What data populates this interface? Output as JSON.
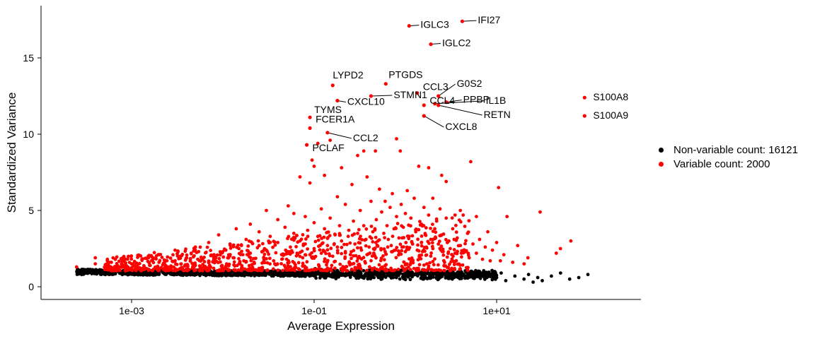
{
  "colors": {
    "variable": "#ff0000",
    "non_variable": "#000000"
  },
  "chart_data": {
    "type": "scatter",
    "title": "",
    "xlabel": "Average Expression",
    "ylabel": "Standardized Variance",
    "x_scale": "log10",
    "xlim": [
      1e-05,
      1000
    ],
    "ylim": [
      -1,
      18.5
    ],
    "x_ticks": [
      {
        "value": 0.001,
        "label": "1e-03"
      },
      {
        "value": 0.1,
        "label": "1e-01"
      },
      {
        "value": 10,
        "label": "1e+01"
      }
    ],
    "y_ticks": [
      {
        "value": 0,
        "label": "0"
      },
      {
        "value": 5,
        "label": "5"
      },
      {
        "value": 10,
        "label": "10"
      },
      {
        "value": 15,
        "label": "15"
      }
    ],
    "grid": false,
    "legend_position": "right",
    "legend": [
      {
        "label": "Non-variable count: 16121",
        "color": "#000000"
      },
      {
        "label": "Variable count: 2000",
        "color": "#ff0000"
      }
    ],
    "labeled_genes": [
      {
        "gene": "IFI27",
        "x": 4.2,
        "y": 17.4
      },
      {
        "gene": "IGLC3",
        "x": 1.1,
        "y": 17.1
      },
      {
        "gene": "IGLC2",
        "x": 1.9,
        "y": 15.9
      },
      {
        "gene": "LYPD2",
        "x": 0.16,
        "y": 13.2
      },
      {
        "gene": "PTGDS",
        "x": 0.61,
        "y": 13.3
      },
      {
        "gene": "CCL3",
        "x": 1.35,
        "y": 12.7
      },
      {
        "gene": "G0S2",
        "x": 2.3,
        "y": 12.5
      },
      {
        "gene": "STMN1",
        "x": 0.42,
        "y": 12.5
      },
      {
        "gene": "PPBP",
        "x": 2.8,
        "y": 12.1
      },
      {
        "gene": "IL1B",
        "x": 2.1,
        "y": 12.0
      },
      {
        "gene": "CXCL10",
        "x": 0.18,
        "y": 12.2
      },
      {
        "gene": "RETN",
        "x": 2.3,
        "y": 11.9
      },
      {
        "gene": "CCL4",
        "x": 1.6,
        "y": 11.9
      },
      {
        "gene": "CXCL8",
        "x": 1.6,
        "y": 11.2
      },
      {
        "gene": "TYMS",
        "x": 0.09,
        "y": 11.1
      },
      {
        "gene": "FCER1A",
        "x": 0.09,
        "y": 10.4
      },
      {
        "gene": "CCL2",
        "x": 0.14,
        "y": 10.1
      },
      {
        "gene": "PCLAF",
        "x": 0.083,
        "y": 9.3
      },
      {
        "gene": "S100A8",
        "x": 92,
        "y": 12.4
      },
      {
        "gene": "S100A9",
        "x": 92,
        "y": 11.2
      }
    ],
    "variable_points": [
      [
        0.00025,
        1.3
      ],
      [
        0.0004,
        1.9
      ],
      [
        0.0004,
        1.5
      ],
      [
        0.0006,
        1.1
      ],
      [
        0.0006,
        1.6
      ],
      [
        0.0008,
        1.3
      ],
      [
        0.0008,
        1.9
      ],
      [
        0.001,
        1.5
      ],
      [
        0.0013,
        1.2
      ],
      [
        0.0013,
        1.8
      ],
      [
        0.0016,
        1.4
      ],
      [
        0.002,
        1.6
      ],
      [
        0.002,
        2.1
      ],
      [
        0.0025,
        1.3
      ],
      [
        0.003,
        2.4
      ],
      [
        0.003,
        1.7
      ],
      [
        0.0035,
        1.5
      ],
      [
        0.004,
        1.9
      ],
      [
        0.0045,
        2.2
      ],
      [
        0.005,
        1.4
      ],
      [
        0.005,
        2.6
      ],
      [
        0.006,
        1.8
      ],
      [
        0.007,
        2.9
      ],
      [
        0.007,
        1.6
      ],
      [
        0.008,
        2.1
      ],
      [
        0.009,
        3.4
      ],
      [
        0.01,
        2.3
      ],
      [
        0.011,
        1.5
      ],
      [
        0.012,
        2.8
      ],
      [
        0.013,
        1.9
      ],
      [
        0.014,
        3.8
      ],
      [
        0.015,
        2.5
      ],
      [
        0.017,
        1.7
      ],
      [
        0.018,
        3.1
      ],
      [
        0.02,
        4.1
      ],
      [
        0.02,
        2.2
      ],
      [
        0.022,
        1.6
      ],
      [
        0.025,
        3.6
      ],
      [
        0.025,
        2.7
      ],
      [
        0.028,
        1.9
      ],
      [
        0.03,
        5.0
      ],
      [
        0.03,
        2.4
      ],
      [
        0.033,
        3.3
      ],
      [
        0.036,
        1.7
      ],
      [
        0.04,
        4.4
      ],
      [
        0.04,
        2.9
      ],
      [
        0.044,
        2.1
      ],
      [
        0.048,
        3.9
      ],
      [
        0.05,
        1.8
      ],
      [
        0.052,
        5.3
      ],
      [
        0.055,
        2.6
      ],
      [
        0.06,
        3.5
      ],
      [
        0.06,
        4.8
      ],
      [
        0.065,
        2.2
      ],
      [
        0.07,
        7.2
      ],
      [
        0.07,
        3.0
      ],
      [
        0.075,
        1.9
      ],
      [
        0.08,
        4.6
      ],
      [
        0.08,
        2.8
      ],
      [
        0.085,
        3.7
      ],
      [
        0.09,
        2.1
      ],
      [
        0.09,
        6.8
      ],
      [
        0.095,
        8.3
      ],
      [
        0.1,
        7.9
      ],
      [
        0.1,
        4.2
      ],
      [
        0.1,
        2.5
      ],
      [
        0.11,
        3.3
      ],
      [
        0.11,
        9.4
      ],
      [
        0.12,
        5.1
      ],
      [
        0.12,
        2.2
      ],
      [
        0.13,
        7.3
      ],
      [
        0.13,
        3.8
      ],
      [
        0.14,
        2.7
      ],
      [
        0.15,
        4.5
      ],
      [
        0.15,
        9.6
      ],
      [
        0.16,
        2.0
      ],
      [
        0.17,
        3.4
      ],
      [
        0.18,
        5.9
      ],
      [
        0.18,
        2.6
      ],
      [
        0.19,
        4.0
      ],
      [
        0.2,
        3.0
      ],
      [
        0.2,
        7.8
      ],
      [
        0.22,
        2.3
      ],
      [
        0.22,
        5.4
      ],
      [
        0.24,
        3.7
      ],
      [
        0.25,
        2.1
      ],
      [
        0.26,
        6.7
      ],
      [
        0.27,
        4.3
      ],
      [
        0.28,
        2.8
      ],
      [
        0.3,
        8.6
      ],
      [
        0.3,
        3.5
      ],
      [
        0.32,
        5.0
      ],
      [
        0.33,
        2.4
      ],
      [
        0.35,
        4.0
      ],
      [
        0.35,
        8.9
      ],
      [
        0.37,
        3.1
      ],
      [
        0.38,
        7.2
      ],
      [
        0.4,
        2.6
      ],
      [
        0.42,
        5.6
      ],
      [
        0.44,
        3.6
      ],
      [
        0.45,
        2.2
      ],
      [
        0.47,
        8.9
      ],
      [
        0.48,
        4.4
      ],
      [
        0.5,
        3.0
      ],
      [
        0.52,
        6.4
      ],
      [
        0.54,
        2.5
      ],
      [
        0.55,
        4.9
      ],
      [
        0.58,
        3.5
      ],
      [
        0.6,
        5.6
      ],
      [
        0.6,
        2.3
      ],
      [
        0.63,
        4.0
      ],
      [
        0.65,
        3.1
      ],
      [
        0.68,
        5.2
      ],
      [
        0.7,
        2.7
      ],
      [
        0.72,
        6.1
      ],
      [
        0.75,
        3.8
      ],
      [
        0.78,
        2.4
      ],
      [
        0.8,
        9.7
      ],
      [
        0.8,
        4.6
      ],
      [
        0.85,
        3.2
      ],
      [
        0.88,
        8.9
      ],
      [
        0.9,
        5.4
      ],
      [
        0.92,
        2.6
      ],
      [
        0.95,
        3.9
      ],
      [
        1.0,
        4.8
      ],
      [
        1.0,
        2.3
      ],
      [
        1.05,
        6.3
      ],
      [
        1.1,
        3.3
      ],
      [
        1.15,
        4.5
      ],
      [
        1.2,
        2.8
      ],
      [
        1.25,
        5.8
      ],
      [
        1.3,
        3.6
      ],
      [
        1.35,
        2.4
      ],
      [
        1.4,
        7.9
      ],
      [
        1.5,
        4.1
      ],
      [
        1.5,
        2.9
      ],
      [
        1.6,
        5.2
      ],
      [
        1.65,
        3.4
      ],
      [
        1.7,
        2.6
      ],
      [
        1.8,
        4.7
      ],
      [
        1.8,
        7.8
      ],
      [
        1.9,
        3.1
      ],
      [
        2.0,
        5.8
      ],
      [
        2.0,
        2.5
      ],
      [
        2.1,
        3.8
      ],
      [
        2.2,
        4.3
      ],
      [
        2.3,
        2.8
      ],
      [
        2.4,
        5.1
      ],
      [
        2.5,
        7.3
      ],
      [
        2.5,
        3.4
      ],
      [
        2.6,
        2.3
      ],
      [
        2.8,
        4.5
      ],
      [
        2.8,
        6.9
      ],
      [
        3.0,
        3.0
      ],
      [
        3.1,
        2.5
      ],
      [
        3.3,
        3.8
      ],
      [
        3.5,
        4.7
      ],
      [
        3.5,
        2.2
      ],
      [
        3.7,
        3.2
      ],
      [
        4.0,
        5.0
      ],
      [
        4.0,
        2.7
      ],
      [
        4.3,
        4.7
      ],
      [
        4.6,
        2.3
      ],
      [
        4.8,
        3.5
      ],
      [
        5.0,
        1.9
      ],
      [
        5.2,
        8.2
      ],
      [
        5.5,
        2.8
      ],
      [
        6.0,
        4.6
      ],
      [
        6.0,
        2.2
      ],
      [
        6.5,
        3.1
      ],
      [
        7.0,
        1.8
      ],
      [
        7.5,
        2.6
      ],
      [
        8.0,
        3.6
      ],
      [
        8.5,
        1.7
      ],
      [
        9.0,
        2.4
      ],
      [
        10.0,
        2.9
      ],
      [
        10.5,
        6.5
      ],
      [
        11.0,
        1.7
      ],
      [
        12.0,
        2.1
      ],
      [
        13.0,
        4.6
      ],
      [
        15.0,
        1.6
      ],
      [
        17.0,
        2.7
      ],
      [
        20.0,
        1.5
      ],
      [
        22.0,
        1.9
      ],
      [
        30.0,
        4.9
      ],
      [
        45.0,
        2.2
      ],
      [
        50.0,
        2.5
      ],
      [
        65.0,
        3.0
      ]
    ]
  }
}
